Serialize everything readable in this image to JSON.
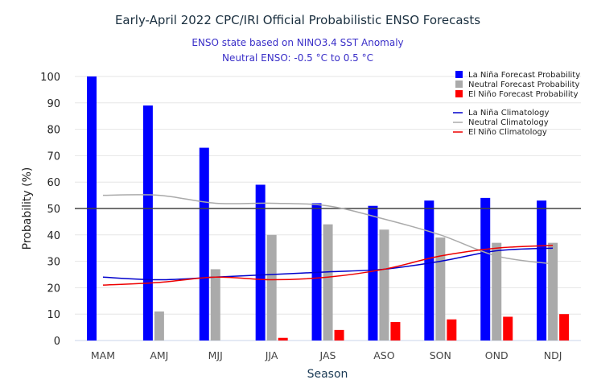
{
  "chart_data": {
    "type": "bar",
    "title": "Early-April 2022 CPC/IRI Official Probabilistic ENSO Forecasts",
    "subtitle_lines": [
      "ENSO state based on NINO3.4 SST Anomaly",
      "Neutral ENSO: -0.5 °C to 0.5 °C"
    ],
    "xlabel": "Season",
    "ylabel": "Probability (%)",
    "ylim": [
      0,
      100
    ],
    "yticks": [
      0,
      10,
      20,
      30,
      40,
      50,
      60,
      70,
      80,
      90,
      100
    ],
    "grid": true,
    "reference_line": 50,
    "legend_position": "top-right",
    "categories": [
      "MAM",
      "AMJ",
      "MJJ",
      "JJA",
      "JAS",
      "ASO",
      "SON",
      "OND",
      "NDJ"
    ],
    "series": [
      {
        "name": "La Niña Forecast Probability",
        "kind": "bar",
        "color": "#0000ff",
        "values": [
          100,
          89,
          73,
          59,
          52,
          51,
          53,
          54,
          53
        ]
      },
      {
        "name": "Neutral Forecast Probability",
        "kind": "bar",
        "color": "#aaaaaa",
        "values": [
          0,
          11,
          27,
          40,
          44,
          42,
          39,
          37,
          37
        ]
      },
      {
        "name": "El Niño Forecast Probability",
        "kind": "bar",
        "color": "#ff0000",
        "values": [
          0,
          0,
          0,
          1,
          4,
          7,
          8,
          9,
          10
        ]
      },
      {
        "name": "La Niña Climatology",
        "kind": "line",
        "color": "#0000cc",
        "values": [
          24,
          23,
          24,
          25,
          26,
          27,
          30,
          34,
          35
        ]
      },
      {
        "name": "Neutral Climatology",
        "kind": "line",
        "color": "#aaaaaa",
        "values": [
          55,
          55,
          52,
          52,
          51,
          46,
          40,
          32,
          29
        ]
      },
      {
        "name": "El Niño Climatology",
        "kind": "line",
        "color": "#ee0000",
        "values": [
          21,
          22,
          24,
          23,
          24,
          27,
          32,
          35,
          36
        ]
      }
    ]
  }
}
